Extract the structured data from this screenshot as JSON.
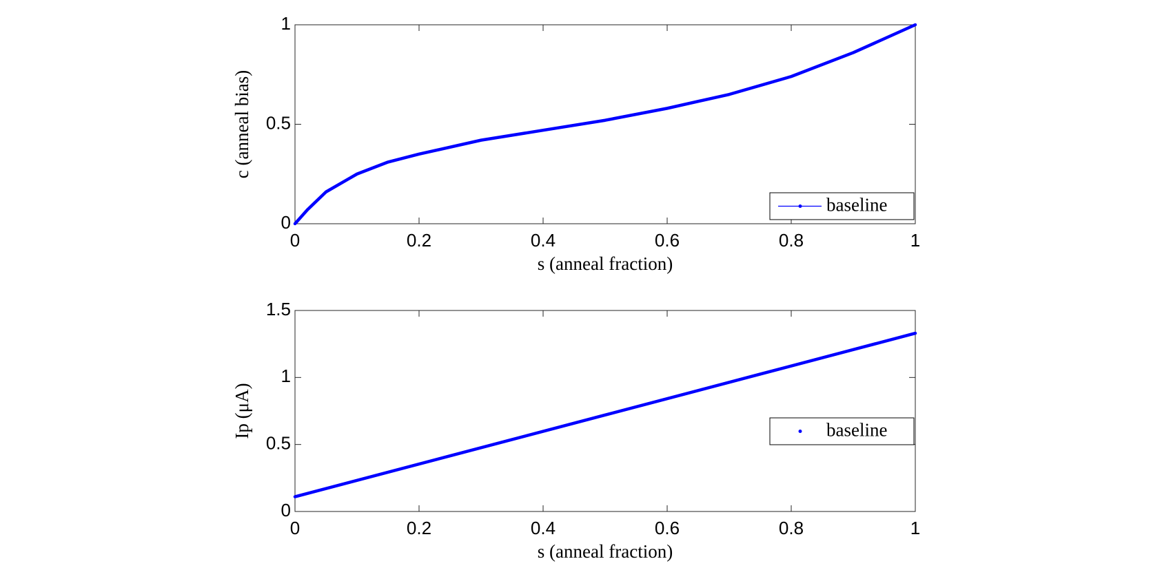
{
  "chart_data": [
    {
      "type": "line",
      "xlabel": "s (anneal fraction)",
      "ylabel": "c (anneal bias)",
      "x": [
        0,
        0.02,
        0.05,
        0.1,
        0.15,
        0.2,
        0.3,
        0.4,
        0.5,
        0.6,
        0.7,
        0.8,
        0.9,
        1
      ],
      "series": [
        {
          "name": "baseline",
          "color": "#0000ff",
          "linestyle": "-",
          "values": [
            0,
            0.07,
            0.16,
            0.25,
            0.31,
            0.35,
            0.42,
            0.47,
            0.52,
            0.58,
            0.65,
            0.74,
            0.86,
            1
          ]
        }
      ],
      "xlim": [
        0,
        1
      ],
      "xticks": [
        0,
        0.2,
        0.4,
        0.6,
        0.8,
        1
      ],
      "ylim": [
        0,
        1
      ],
      "yticks": [
        0,
        0.5,
        1
      ],
      "legend": "lower right"
    },
    {
      "type": "line",
      "xlabel": "s (anneal fraction)",
      "ylabel": "Ip (μA)",
      "x": [
        0,
        0.25,
        0.5,
        0.75,
        1
      ],
      "series": [
        {
          "name": "baseline",
          "color": "#0000ff",
          "linestyle": "none",
          "values": [
            0.11,
            0.415,
            0.72,
            1.025,
            1.33
          ]
        }
      ],
      "xlim": [
        0,
        1
      ],
      "xticks": [
        0,
        0.2,
        0.4,
        0.6,
        0.8,
        1
      ],
      "ylim": [
        0,
        1.5
      ],
      "yticks": [
        0,
        0.5,
        1,
        1.5
      ],
      "legend": "right"
    }
  ]
}
